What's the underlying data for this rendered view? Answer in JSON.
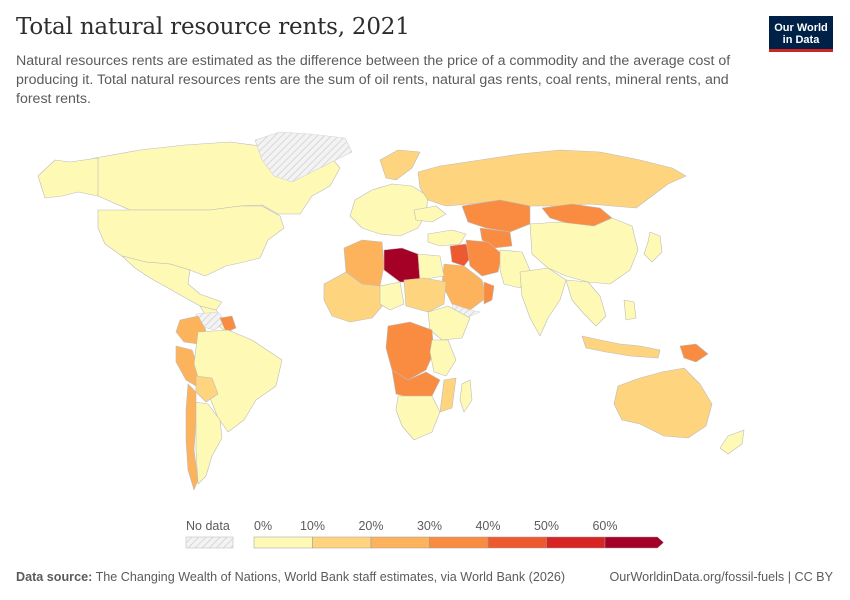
{
  "header": {
    "title": "Total natural resource rents, 2021",
    "subtitle": "Natural resources rents are estimated as the difference between the price of a commodity and the average cost of producing it. Total natural resources rents are the sum of oil rents, natural gas rents, coal rents, mineral rents, and forest rents."
  },
  "logo": {
    "line1": "Our World",
    "line2": "in Data"
  },
  "legend": {
    "no_data_label": "No data",
    "bins": [
      {
        "label": "0%",
        "color": "#fef9b5"
      },
      {
        "label": "10%",
        "color": "#fed57e"
      },
      {
        "label": "20%",
        "color": "#fdb35c"
      },
      {
        "label": "30%",
        "color": "#f98c40"
      },
      {
        "label": "40%",
        "color": "#ee5a2f"
      },
      {
        "label": "50%",
        "color": "#d82422"
      },
      {
        "label": "60%",
        "color": "#a50026"
      }
    ]
  },
  "colors": {
    "land_border": "#b9b9b9",
    "no_data_fill": "#eeeeee",
    "hatch": "#cfcfcf"
  },
  "footer": {
    "source_label": "Data source:",
    "source_text": "The Changing Wealth of Nations, World Bank staff estimates, via World Bank (2026)",
    "url": "OurWorldinData.org/fossil-fuels | CC BY"
  }
}
